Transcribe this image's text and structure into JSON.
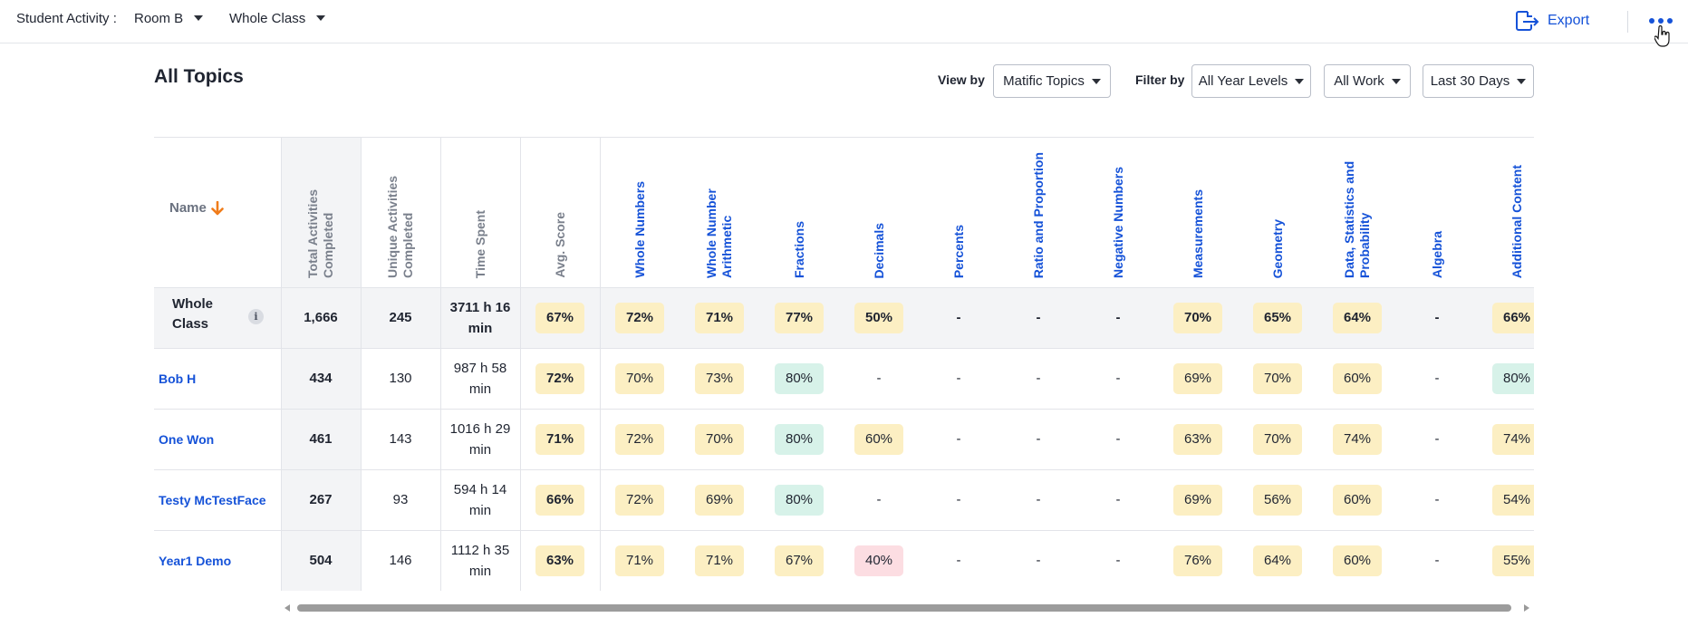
{
  "topbar": {
    "label": "Student Activity :",
    "room": "Room B",
    "group": "Whole Class",
    "export_label": "Export"
  },
  "page": {
    "title": "All Topics",
    "view_by_label": "View by",
    "view_by_value": "Matific Topics",
    "filter_by_label": "Filter by",
    "year_filter": "All Year Levels",
    "work_filter": "All Work",
    "date_filter": "Last 30 Days"
  },
  "table": {
    "name_header": "Name",
    "headers": {
      "total": "Total Activities Completed",
      "unique": "Unique Activities Completed",
      "time": "Time Spent",
      "avg": "Avg. Score"
    },
    "topics": [
      "Whole Numbers",
      "Whole Number Arithmetic",
      "Fractions",
      "Decimals",
      "Percents",
      "Ratio and Proportion",
      "Negative Numbers",
      "Measurements",
      "Geometry",
      "Data, Statistics and Probability",
      "Algebra",
      "Additional Content"
    ],
    "whole_class": {
      "name": "Whole Class",
      "total": "1,666",
      "unique": "245",
      "time_h": "3711 h 16",
      "time_m": "min",
      "avg": "67%",
      "scores": [
        "72%",
        "71%",
        "77%",
        "50%",
        "-",
        "-",
        "-",
        "70%",
        "65%",
        "64%",
        "-",
        "66%"
      ]
    },
    "rows": [
      {
        "name": "Bob H",
        "total": "434",
        "unique": "130",
        "time_h": "987 h 58",
        "time_m": "min",
        "avg": "72%",
        "scores": [
          "70%",
          "73%",
          "80%",
          "-",
          "-",
          "-",
          "-",
          "69%",
          "70%",
          "60%",
          "-",
          "80%"
        ]
      },
      {
        "name": "One Won",
        "total": "461",
        "unique": "143",
        "time_h": "1016 h 29",
        "time_m": "min",
        "avg": "71%",
        "scores": [
          "72%",
          "70%",
          "80%",
          "60%",
          "-",
          "-",
          "-",
          "63%",
          "70%",
          "74%",
          "-",
          "74%"
        ]
      },
      {
        "name": "Testy McTestFace",
        "total": "267",
        "unique": "93",
        "time_h": "594 h 14",
        "time_m": "min",
        "avg": "66%",
        "scores": [
          "72%",
          "69%",
          "80%",
          "-",
          "-",
          "-",
          "-",
          "69%",
          "56%",
          "60%",
          "-",
          "54%"
        ]
      },
      {
        "name": "Year1 Demo",
        "total": "504",
        "unique": "146",
        "time_h": "1112 h 35",
        "time_m": "min",
        "avg": "63%",
        "scores": [
          "71%",
          "71%",
          "67%",
          "40%",
          "-",
          "-",
          "-",
          "76%",
          "64%",
          "60%",
          "-",
          "55%"
        ]
      }
    ]
  },
  "colors": {
    "accent": "#1552d8",
    "sort_arrow": "#f07c1a",
    "pill_yellow": "#fcefc3",
    "pill_green": "#d7f2e9",
    "pill_red": "#fcdde2"
  }
}
